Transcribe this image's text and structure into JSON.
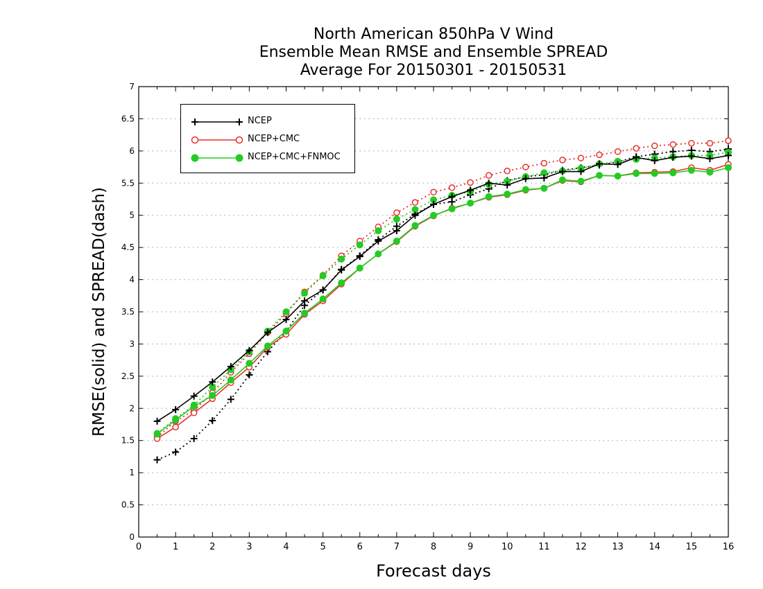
{
  "title": {
    "line1": "North American 850hPa V Wind",
    "line2": "Ensemble Mean RMSE and Ensemble SPREAD",
    "line3": "Average For 20150301 - 20150531"
  },
  "legend": {
    "items": [
      {
        "label": "NCEP",
        "color": "#000000",
        "marker": "plus"
      },
      {
        "label": "NCEP+CMC",
        "color": "#e8302c",
        "marker": "open-circle"
      },
      {
        "label": "NCEP+CMC+FNMOC",
        "color": "#22cc22",
        "marker": "filled-circle"
      }
    ]
  },
  "chart_data": {
    "type": "line",
    "xlabel": "Forecast days",
    "ylabel": "RMSE(solid) and SPREAD(dash)",
    "xlim": [
      0,
      16
    ],
    "ylim": [
      0,
      7
    ],
    "xticks": [
      "0",
      "1",
      "2",
      "3",
      "4",
      "5",
      "6",
      "7",
      "8",
      "9",
      "10",
      "11",
      "12",
      "13",
      "14",
      "15",
      "16"
    ],
    "yticks": [
      "0",
      "0.5",
      "1",
      "1.5",
      "2",
      "2.5",
      "3",
      "3.5",
      "4",
      "4.5",
      "5",
      "5.5",
      "6",
      "6.5",
      "7"
    ],
    "grid": true,
    "legend_position": "top-left",
    "x": [
      0.5,
      1,
      1.5,
      2,
      2.5,
      3,
      3.5,
      4,
      4.5,
      5,
      5.5,
      6,
      6.5,
      7,
      7.5,
      8,
      8.5,
      9,
      9.5,
      10,
      10.5,
      11,
      11.5,
      12,
      12.5,
      13,
      13.5,
      14,
      14.5,
      15,
      15.5,
      16
    ],
    "series": [
      {
        "name": "NCEP",
        "style": "solid",
        "color": "#000000",
        "marker": "plus",
        "values": [
          1.8,
          1.98,
          2.19,
          2.41,
          2.65,
          2.9,
          3.18,
          3.38,
          3.67,
          3.84,
          4.15,
          4.36,
          4.6,
          4.76,
          5.0,
          5.17,
          5.29,
          5.39,
          5.5,
          5.47,
          5.57,
          5.58,
          5.68,
          5.68,
          5.8,
          5.79,
          5.9,
          5.85,
          5.9,
          5.92,
          5.88,
          5.93
        ]
      },
      {
        "name": "NCEP+CMC",
        "style": "solid",
        "color": "#e8302c",
        "marker": "open-circle",
        "values": [
          1.53,
          1.71,
          1.93,
          2.15,
          2.4,
          2.64,
          2.95,
          3.15,
          3.46,
          3.67,
          3.93,
          4.18,
          4.4,
          4.59,
          4.83,
          4.99,
          5.11,
          5.19,
          5.28,
          5.32,
          5.39,
          5.42,
          5.54,
          5.52,
          5.62,
          5.61,
          5.66,
          5.67,
          5.68,
          5.74,
          5.7,
          5.79
        ]
      },
      {
        "name": "NCEP+CMC+FNMOC",
        "style": "solid",
        "color": "#22cc22",
        "marker": "filled-circle",
        "values": [
          1.6,
          1.82,
          2.03,
          2.2,
          2.44,
          2.7,
          2.97,
          3.2,
          3.48,
          3.7,
          3.95,
          4.18,
          4.4,
          4.6,
          4.84,
          5.0,
          5.1,
          5.19,
          5.29,
          5.33,
          5.4,
          5.42,
          5.55,
          5.53,
          5.62,
          5.61,
          5.65,
          5.65,
          5.66,
          5.7,
          5.67,
          5.74
        ]
      },
      {
        "name": "NCEP",
        "style": "dash",
        "color": "#000000",
        "marker": "plus",
        "values": [
          1.2,
          1.32,
          1.53,
          1.81,
          2.14,
          2.52,
          2.88,
          3.2,
          3.6,
          3.84,
          4.16,
          4.37,
          4.62,
          4.83,
          5.02,
          5.17,
          5.21,
          5.32,
          5.41,
          5.54,
          5.6,
          5.63,
          5.7,
          5.74,
          5.78,
          5.83,
          5.91,
          5.95,
          5.99,
          6.01,
          5.99,
          6.03
        ]
      },
      {
        "name": "NCEP+CMC",
        "style": "dash",
        "color": "#e8302c",
        "marker": "open-circle",
        "values": [
          1.55,
          1.8,
          1.97,
          2.24,
          2.56,
          2.85,
          3.18,
          3.47,
          3.81,
          4.07,
          4.37,
          4.6,
          4.82,
          5.04,
          5.2,
          5.36,
          5.43,
          5.51,
          5.62,
          5.69,
          5.75,
          5.81,
          5.86,
          5.89,
          5.94,
          5.99,
          6.04,
          6.08,
          6.1,
          6.12,
          6.12,
          6.16
        ]
      },
      {
        "name": "NCEP+CMC+FNMOC",
        "style": "dash",
        "color": "#22cc22",
        "marker": "filled-circle",
        "values": [
          1.61,
          1.84,
          2.05,
          2.33,
          2.6,
          2.88,
          3.2,
          3.5,
          3.79,
          4.06,
          4.32,
          4.54,
          4.76,
          4.94,
          5.09,
          5.24,
          5.31,
          5.37,
          5.48,
          5.53,
          5.6,
          5.66,
          5.69,
          5.73,
          5.8,
          5.84,
          5.87,
          5.89,
          5.91,
          5.93,
          5.93,
          5.98
        ]
      }
    ]
  }
}
